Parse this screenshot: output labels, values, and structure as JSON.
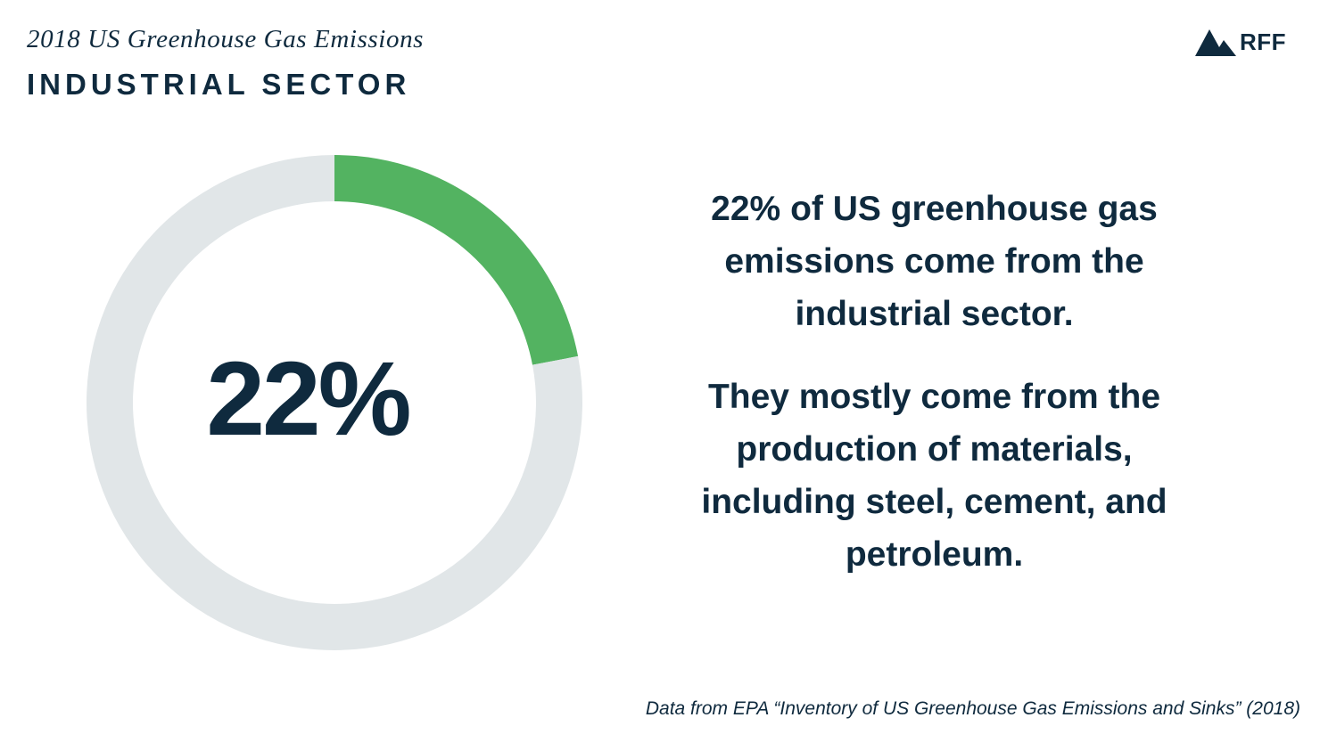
{
  "header": {
    "title": "2018 US Greenhouse Gas Emissions",
    "subtitle": "INDUSTRIAL SECTOR"
  },
  "logo": {
    "icon": "mountain-icon",
    "text": "RFF"
  },
  "chart_data": {
    "type": "pie",
    "style": "donut",
    "center_label": "22%",
    "slices": [
      {
        "value": 22,
        "color": "#53b361"
      },
      {
        "value": 78,
        "color": "#e1e6e8"
      }
    ]
  },
  "text": {
    "paragraph_1": "22% of US greenhouse gas emissions come from the industrial sector.",
    "paragraph_2": "They mostly come from the production of materials, including steel, cement, and petroleum."
  },
  "source": "Data from EPA “Inventory of US Greenhouse Gas Emissions and Sinks” (2018)",
  "colors": {
    "text": "#0f2a3e",
    "accent": "#53b361",
    "track": "#e1e6e8"
  }
}
